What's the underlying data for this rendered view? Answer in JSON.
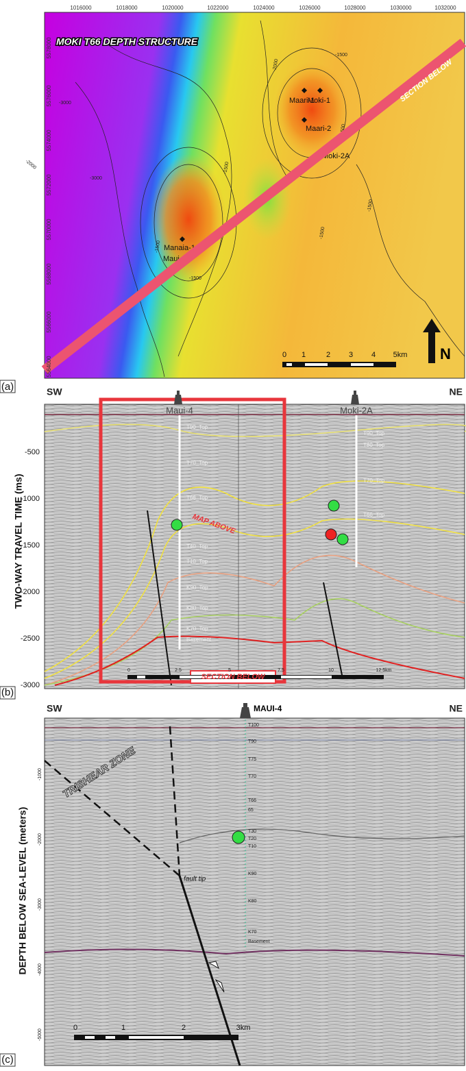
{
  "panel_a": {
    "label": "(a)",
    "title": "MOKI T66 DEPTH STRUCTURE",
    "section_label": "SECTION BELOW",
    "x_ticks": [
      "1016000",
      "1018000",
      "1020000",
      "1022000",
      "1024000",
      "1026000",
      "1028000",
      "1030000",
      "1032000"
    ],
    "y_ticks": [
      "5578000",
      "5576000",
      "5574000",
      "5572000",
      "5570000",
      "5568000",
      "5566000",
      "5564000"
    ],
    "contour_labels": [
      "-2000",
      "-1500",
      "-3000",
      "-2000",
      "-3000",
      "-1500",
      "-1500",
      "-1500",
      "-1500",
      "-1500",
      "-1500"
    ],
    "wells": [
      "Maari-1",
      "Moki-1",
      "Maari-2",
      "Moki-2A",
      "Manaia-1",
      "Maui-4"
    ],
    "scale": [
      "0",
      "1",
      "2",
      "3",
      "4",
      "5km"
    ],
    "north": "N"
  },
  "panel_b": {
    "label": "(b)",
    "left_dir": "SW",
    "right_dir": "NE",
    "wells": [
      "Maui-4",
      "Moki-2A"
    ],
    "left_horizons": [
      "T90_Top",
      "T70_Top",
      "T66_Top",
      "T40_Top",
      "T10_Top",
      "K90_Top",
      "K80_Top",
      "K70_Top",
      "Basement"
    ],
    "right_horizons": [
      "T90_Top",
      "T80_Top",
      "T70_Top",
      "T66_Top"
    ],
    "map_label": "MAP ABOVE",
    "section_label": "SECTION BELOW",
    "axis_label": "TWO-WAY TRAVEL TIME (ms)",
    "y_ticks": [
      "-500",
      "-1000",
      "-1500",
      "-2000",
      "-2500",
      "-3000"
    ],
    "scale": [
      "0",
      "2.5",
      "5",
      "7.5",
      "10",
      "12.5km"
    ]
  },
  "panel_c": {
    "label": "(c)",
    "left_dir": "SW",
    "well": "MAUI-4",
    "right_dir": "NE",
    "horizons": [
      "T100",
      "T90",
      "T75",
      "T70",
      "T66",
      "65",
      "T30",
      "T20",
      "T10",
      "K90",
      "K80",
      "K70",
      "Basement"
    ],
    "zone_label": "TRISHEAR ZONE",
    "fault_label": "fault tip",
    "axis_label": "DEPTH BELOW SEA-LEVEL (meters)",
    "y_ticks": [
      "-1000",
      "-2000",
      "-3000",
      "-4000",
      "-5000"
    ],
    "scale": [
      "0",
      "1",
      "2",
      "3km"
    ]
  }
}
